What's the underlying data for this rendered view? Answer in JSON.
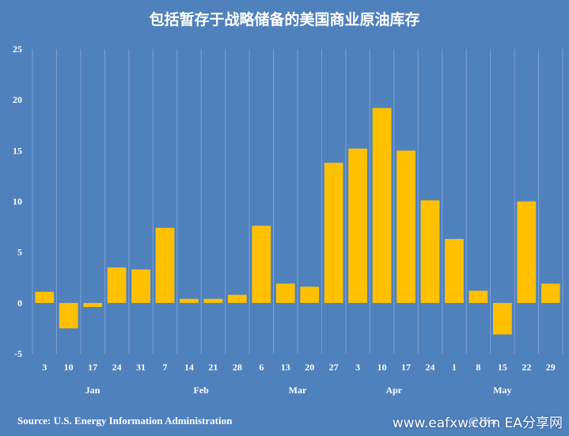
{
  "chart_data": {
    "type": "bar",
    "title": "包括暂存于战略储备的美国商业原油库存",
    "categories": [
      "3",
      "10",
      "17",
      "24",
      "31",
      "7",
      "14",
      "21",
      "28",
      "6",
      "13",
      "20",
      "27",
      "3",
      "10",
      "17",
      "24",
      "1",
      "8",
      "15",
      "22",
      "29"
    ],
    "months": [
      {
        "label": "Jan",
        "from": 0,
        "to": 4
      },
      {
        "label": "Feb",
        "from": 5,
        "to": 8
      },
      {
        "label": "Mar",
        "from": 9,
        "to": 12
      },
      {
        "label": "Apr",
        "from": 13,
        "to": 16
      },
      {
        "label": "May",
        "from": 17,
        "to": 21
      }
    ],
    "values": [
      1.1,
      -2.5,
      -0.4,
      3.5,
      3.3,
      7.4,
      0.4,
      0.4,
      0.8,
      7.6,
      1.9,
      1.6,
      13.8,
      15.2,
      19.2,
      15.0,
      10.1,
      6.3,
      1.2,
      -3.1,
      10.0,
      1.9
    ],
    "ylim": [
      -5,
      25
    ],
    "yticks": [
      -5,
      0,
      5,
      10,
      15,
      20,
      25
    ],
    "grid": "vertical",
    "bar_color": "#ffc000",
    "grid_color": "#7fa3cf",
    "xlabel": "",
    "ylabel": ""
  },
  "source": "Source: U.S. Energy Information Administration",
  "credit": "@JKa",
  "watermark": "www.eafxw.com  EA分享网"
}
